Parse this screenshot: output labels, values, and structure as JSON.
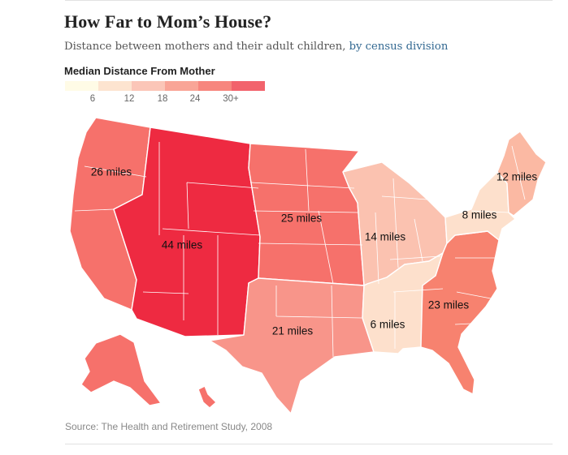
{
  "title": "How Far to Mom’s House?",
  "subtitle": {
    "text": "Distance between mothers and their adult children, ",
    "link": "by census division"
  },
  "legend": {
    "title": "Median Distance From Mother",
    "colors": [
      "#fffbe6",
      "#fde4d0",
      "#fbc6b8",
      "#f9a597",
      "#f7867e",
      "#f2636c"
    ],
    "ticks": [
      "6",
      "12",
      "18",
      "24",
      "30+"
    ]
  },
  "divisions": [
    {
      "name": "Pacific",
      "value": "26 miles",
      "color": "#f6716b"
    },
    {
      "name": "Mountain",
      "value": "44 miles",
      "color": "#ee2a41"
    },
    {
      "name": "West North Central",
      "value": "25 miles",
      "color": "#f6716b"
    },
    {
      "name": "West South Central",
      "value": "21 miles",
      "color": "#f8958a"
    },
    {
      "name": "East North Central",
      "value": "14 miles",
      "color": "#fbc2b0"
    },
    {
      "name": "East South Central",
      "value": "6 miles",
      "color": "#fde0cc"
    },
    {
      "name": "South Atlantic",
      "value": "23 miles",
      "color": "#f7826f"
    },
    {
      "name": "Middle Atlantic",
      "value": "8 miles",
      "color": "#fde0cc"
    },
    {
      "name": "New England",
      "value": "12 miles",
      "color": "#fbb9a3"
    }
  ],
  "source": "Source: The Health and Retirement Study, 2008"
}
